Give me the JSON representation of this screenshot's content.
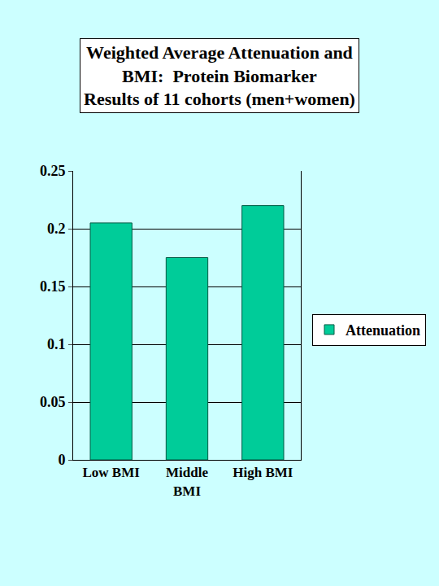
{
  "chart_data": {
    "type": "bar",
    "title": "Weighted Average Attenuation and\nBMI:  Protein Biomarker\nResults of 11 cohorts (men+women)",
    "categories": [
      "Low BMI",
      "Middle BMI",
      "High BMI"
    ],
    "series": [
      {
        "name": "Attenuation",
        "color": "#00cc99",
        "values": [
          0.205,
          0.175,
          0.22
        ]
      }
    ],
    "ylim": [
      0,
      0.25
    ],
    "yticks": [
      0,
      0.05,
      0.1,
      0.15,
      0.2,
      0.25
    ],
    "grid": true,
    "legend": "right"
  }
}
